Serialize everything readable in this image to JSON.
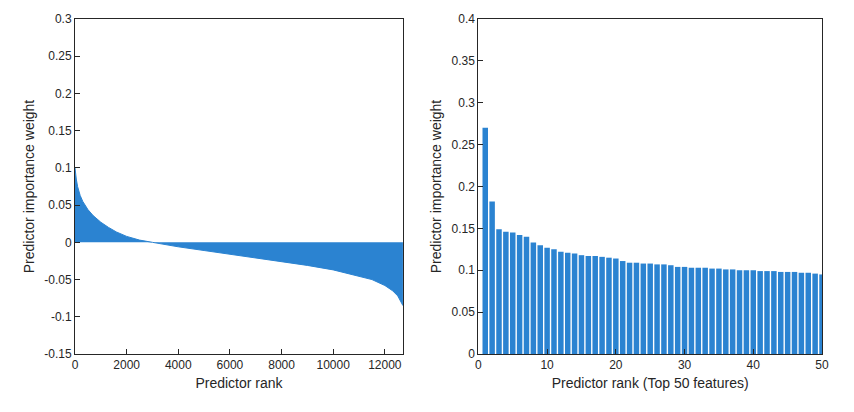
{
  "chart_data": [
    {
      "type": "area",
      "xlabel": "Predictor rank",
      "ylabel": "Predictor importance weight",
      "x": [
        0,
        25,
        50,
        100,
        200,
        300,
        400,
        500,
        700,
        1000,
        1300,
        1600,
        2000,
        2500,
        3000,
        3500,
        4000,
        5000,
        6000,
        7000,
        8000,
        9000,
        10000,
        11000,
        11500,
        12000,
        12300,
        12500,
        12600,
        12700
      ],
      "values": [
        0.1,
        0.09,
        0.085,
        0.075,
        0.063,
        0.055,
        0.049,
        0.044,
        0.036,
        0.027,
        0.02,
        0.014,
        0.008,
        0.003,
        0.0,
        -0.003,
        -0.006,
        -0.011,
        -0.016,
        -0.021,
        -0.026,
        -0.031,
        -0.037,
        -0.045,
        -0.05,
        -0.058,
        -0.065,
        -0.072,
        -0.078,
        -0.085
      ],
      "xlim": [
        0,
        12700
      ],
      "xticks": [
        0,
        2000,
        4000,
        6000,
        8000,
        10000,
        12000
      ],
      "ylim": [
        -0.15,
        0.3
      ],
      "yticks": [
        -0.15,
        -0.1,
        -0.05,
        0,
        0.05,
        0.1,
        0.15,
        0.2,
        0.25,
        0.3
      ],
      "color": "#2b83d1",
      "grid": false
    },
    {
      "type": "bar",
      "xlabel": "Predictor rank (Top 50 features)",
      "ylabel": "Predictor importance weight",
      "x": [
        1,
        2,
        3,
        4,
        5,
        6,
        7,
        8,
        9,
        10,
        11,
        12,
        13,
        14,
        15,
        16,
        17,
        18,
        19,
        20,
        21,
        22,
        23,
        24,
        25,
        26,
        27,
        28,
        29,
        30,
        31,
        32,
        33,
        34,
        35,
        36,
        37,
        38,
        39,
        40,
        41,
        42,
        43,
        44,
        45,
        46,
        47,
        48,
        49,
        50
      ],
      "values": [
        0.27,
        0.182,
        0.149,
        0.146,
        0.145,
        0.142,
        0.14,
        0.133,
        0.13,
        0.127,
        0.125,
        0.122,
        0.121,
        0.12,
        0.118,
        0.117,
        0.117,
        0.116,
        0.115,
        0.114,
        0.111,
        0.109,
        0.109,
        0.108,
        0.108,
        0.107,
        0.107,
        0.106,
        0.104,
        0.104,
        0.103,
        0.103,
        0.103,
        0.102,
        0.102,
        0.101,
        0.101,
        0.1,
        0.1,
        0.1,
        0.099,
        0.099,
        0.099,
        0.098,
        0.098,
        0.098,
        0.097,
        0.097,
        0.096,
        0.095
      ],
      "xlim": [
        0,
        50
      ],
      "xticks": [
        0,
        10,
        20,
        30,
        40,
        50
      ],
      "ylim": [
        0,
        0.4
      ],
      "yticks": [
        0,
        0.05,
        0.1,
        0.15,
        0.2,
        0.25,
        0.3,
        0.35,
        0.4
      ],
      "color": "#2b83d1",
      "grid": false
    }
  ]
}
